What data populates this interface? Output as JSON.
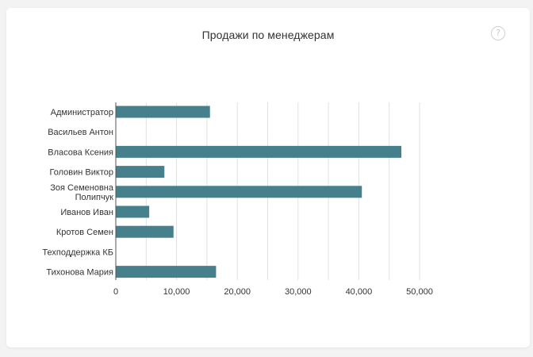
{
  "card": {
    "help_icon": "question-circle-icon",
    "help_glyph": "?"
  },
  "colors": {
    "bar": "#47808d",
    "grid": "#e0e0e0",
    "axis": "#555555",
    "text": "#333333"
  },
  "chart_data": {
    "type": "bar",
    "orientation": "horizontal",
    "title": "Продажи по менеджерам",
    "xlabel": "",
    "ylabel": "",
    "categories": [
      [
        "Администратор"
      ],
      [
        "Васильев Антон"
      ],
      [
        "Власова Ксения"
      ],
      [
        "Головин Виктор"
      ],
      [
        "Зоя Семеновна",
        "Полипчук"
      ],
      [
        "Иванов Иван"
      ],
      [
        "Кротов Семен"
      ],
      [
        "Техподдержка КБ"
      ],
      [
        "Тихонова Мария"
      ]
    ],
    "values": [
      15500,
      0,
      47000,
      8000,
      40500,
      5500,
      9500,
      0,
      16500
    ],
    "xlim": [
      0,
      50000
    ],
    "xticks": [
      0,
      10000,
      20000,
      30000,
      40000,
      50000
    ],
    "xtick_labels": [
      "0",
      "10,000",
      "20,000",
      "30,000",
      "40,000",
      "50,000"
    ],
    "grid": true,
    "legend": false
  }
}
